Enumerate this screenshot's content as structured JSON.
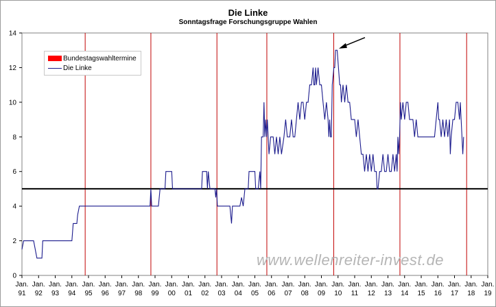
{
  "chart_data": {
    "type": "line",
    "title": "Die Linke",
    "subtitle": "Sonntagsfrage Forschungsgruppe Wahlen",
    "ylim": [
      0,
      14
    ],
    "y_ticks": [
      "0",
      "2",
      "4",
      "6",
      "8",
      "10",
      "12",
      "14"
    ],
    "x_range": [
      1991.0,
      2019.0
    ],
    "x_tick_labels": [
      {
        "month": "Jan.",
        "year": "91"
      },
      {
        "month": "Jan.",
        "year": "92"
      },
      {
        "month": "Jan.",
        "year": "93"
      },
      {
        "month": "Jan.",
        "year": "94"
      },
      {
        "month": "Jan.",
        "year": "95"
      },
      {
        "month": "Jan.",
        "year": "96"
      },
      {
        "month": "Jan.",
        "year": "97"
      },
      {
        "month": "Jan.",
        "year": "98"
      },
      {
        "month": "Jan.",
        "year": "99"
      },
      {
        "month": "Jan.",
        "year": "00"
      },
      {
        "month": "Jan.",
        "year": "01"
      },
      {
        "month": "Jan.",
        "year": "02"
      },
      {
        "month": "Jan.",
        "year": "03"
      },
      {
        "month": "Jan.",
        "year": "04"
      },
      {
        "month": "Jan.",
        "year": "05"
      },
      {
        "month": "Jan.",
        "year": "06"
      },
      {
        "month": "Jan.",
        "year": "07"
      },
      {
        "month": "Jan.",
        "year": "08"
      },
      {
        "month": "Jan.",
        "year": "09"
      },
      {
        "month": "Jan.",
        "year": "10"
      },
      {
        "month": "Jan.",
        "year": "11"
      },
      {
        "month": "Jan.",
        "year": "12"
      },
      {
        "month": "Jan.",
        "year": "13"
      },
      {
        "month": "Jan.",
        "year": "14"
      },
      {
        "month": "Jan.",
        "year": "15"
      },
      {
        "month": "Jan.",
        "year": "16"
      },
      {
        "month": "Jan.",
        "year": "17"
      },
      {
        "month": "Jan.",
        "year": "18"
      },
      {
        "month": "Jan.",
        "year": "19"
      }
    ],
    "legend": [
      {
        "label": "Bundestagswahltermine",
        "color": "#ff0000"
      },
      {
        "label": "Die Linke",
        "color": "#1a1a8c"
      }
    ],
    "legend_position": "top-left",
    "grid": false,
    "election_dates": [
      1994.8,
      1998.75,
      2002.72,
      2005.72,
      2009.74,
      2013.72,
      2017.73
    ],
    "threshold": {
      "value": 5,
      "color": "#000000"
    },
    "annotation_arrow": {
      "x": 2010.05,
      "y": 13.1
    },
    "series": [
      {
        "name": "Die Linke",
        "color": "#1a1a8c",
        "points": [
          [
            1991.0,
            1.5
          ],
          [
            1991.1,
            2
          ],
          [
            1991.5,
            2
          ],
          [
            1991.7,
            2
          ],
          [
            1991.9,
            1
          ],
          [
            1992.0,
            1
          ],
          [
            1992.2,
            1
          ],
          [
            1992.25,
            2
          ],
          [
            1992.5,
            2
          ],
          [
            1993.0,
            2
          ],
          [
            1993.5,
            2
          ],
          [
            1994.0,
            2
          ],
          [
            1994.08,
            3
          ],
          [
            1994.3,
            3
          ],
          [
            1994.35,
            3.5
          ],
          [
            1994.45,
            4
          ],
          [
            1995.0,
            4
          ],
          [
            1996.0,
            4
          ],
          [
            1997.0,
            4
          ],
          [
            1998.0,
            4
          ],
          [
            1998.7,
            4
          ],
          [
            1998.75,
            5
          ],
          [
            1998.8,
            4
          ],
          [
            1999.2,
            4
          ],
          [
            1999.3,
            5
          ],
          [
            1999.6,
            5
          ],
          [
            1999.65,
            6
          ],
          [
            2000.0,
            6
          ],
          [
            2000.05,
            5
          ],
          [
            2001.0,
            5
          ],
          [
            2001.8,
            5
          ],
          [
            2001.85,
            6
          ],
          [
            2002.1,
            6
          ],
          [
            2002.15,
            5
          ],
          [
            2002.2,
            6
          ],
          [
            2002.3,
            5
          ],
          [
            2002.6,
            5
          ],
          [
            2002.65,
            4.5
          ],
          [
            2002.7,
            5
          ],
          [
            2002.75,
            4
          ],
          [
            2003.5,
            4
          ],
          [
            2003.55,
            3.5
          ],
          [
            2003.6,
            3
          ],
          [
            2003.65,
            4
          ],
          [
            2004.1,
            4
          ],
          [
            2004.2,
            4.5
          ],
          [
            2004.3,
            4
          ],
          [
            2004.4,
            5
          ],
          [
            2004.6,
            5
          ],
          [
            2004.65,
            6
          ],
          [
            2004.9,
            6
          ],
          [
            2005.0,
            6
          ],
          [
            2005.05,
            5
          ],
          [
            2005.2,
            5
          ],
          [
            2005.3,
            6
          ],
          [
            2005.35,
            5
          ],
          [
            2005.4,
            8
          ],
          [
            2005.5,
            8
          ],
          [
            2005.55,
            10
          ],
          [
            2005.6,
            8
          ],
          [
            2005.65,
            9
          ],
          [
            2005.7,
            8
          ],
          [
            2005.75,
            9
          ],
          [
            2005.85,
            7
          ],
          [
            2005.95,
            8
          ],
          [
            2006.1,
            8
          ],
          [
            2006.2,
            7
          ],
          [
            2006.3,
            8
          ],
          [
            2006.4,
            7
          ],
          [
            2006.5,
            8
          ],
          [
            2006.6,
            7
          ],
          [
            2006.75,
            8
          ],
          [
            2006.85,
            9
          ],
          [
            2006.95,
            8
          ],
          [
            2007.1,
            8
          ],
          [
            2007.2,
            9
          ],
          [
            2007.3,
            8
          ],
          [
            2007.4,
            8
          ],
          [
            2007.5,
            9
          ],
          [
            2007.6,
            10
          ],
          [
            2007.7,
            9
          ],
          [
            2007.8,
            10
          ],
          [
            2007.9,
            10
          ],
          [
            2008.0,
            9
          ],
          [
            2008.1,
            10
          ],
          [
            2008.2,
            10
          ],
          [
            2008.3,
            11
          ],
          [
            2008.4,
            11
          ],
          [
            2008.5,
            12
          ],
          [
            2008.55,
            11
          ],
          [
            2008.6,
            11
          ],
          [
            2008.65,
            12
          ],
          [
            2008.7,
            11
          ],
          [
            2008.8,
            12
          ],
          [
            2008.9,
            11
          ],
          [
            2009.0,
            11
          ],
          [
            2009.1,
            10
          ],
          [
            2009.2,
            9
          ],
          [
            2009.3,
            10
          ],
          [
            2009.4,
            9
          ],
          [
            2009.45,
            8
          ],
          [
            2009.5,
            9
          ],
          [
            2009.55,
            8
          ],
          [
            2009.6,
            8
          ],
          [
            2009.65,
            11
          ],
          [
            2009.75,
            12
          ],
          [
            2009.8,
            12
          ],
          [
            2009.85,
            13
          ],
          [
            2009.95,
            13
          ],
          [
            2010.1,
            11
          ],
          [
            2010.15,
            11
          ],
          [
            2010.2,
            10
          ],
          [
            2010.3,
            11
          ],
          [
            2010.4,
            10
          ],
          [
            2010.5,
            11
          ],
          [
            2010.6,
            10
          ],
          [
            2010.7,
            10
          ],
          [
            2010.8,
            9
          ],
          [
            2011.0,
            9
          ],
          [
            2011.1,
            8
          ],
          [
            2011.2,
            9
          ],
          [
            2011.3,
            8
          ],
          [
            2011.4,
            7
          ],
          [
            2011.5,
            7
          ],
          [
            2011.6,
            6
          ],
          [
            2011.7,
            7
          ],
          [
            2011.8,
            6
          ],
          [
            2011.9,
            7
          ],
          [
            2012.0,
            6
          ],
          [
            2012.1,
            7
          ],
          [
            2012.2,
            6
          ],
          [
            2012.3,
            6
          ],
          [
            2012.35,
            5
          ],
          [
            2012.4,
            5
          ],
          [
            2012.5,
            6
          ],
          [
            2012.6,
            6
          ],
          [
            2012.7,
            7
          ],
          [
            2012.8,
            6
          ],
          [
            2012.9,
            6
          ],
          [
            2013.0,
            7
          ],
          [
            2013.1,
            6
          ],
          [
            2013.2,
            6
          ],
          [
            2013.3,
            7
          ],
          [
            2013.4,
            6
          ],
          [
            2013.5,
            7
          ],
          [
            2013.55,
            6
          ],
          [
            2013.6,
            8
          ],
          [
            2013.65,
            7
          ],
          [
            2013.7,
            8
          ],
          [
            2013.75,
            10
          ],
          [
            2013.8,
            9
          ],
          [
            2013.9,
            10
          ],
          [
            2014.0,
            9
          ],
          [
            2014.1,
            10
          ],
          [
            2014.2,
            10
          ],
          [
            2014.3,
            9
          ],
          [
            2014.4,
            9
          ],
          [
            2014.5,
            9
          ],
          [
            2014.6,
            8
          ],
          [
            2014.7,
            9
          ],
          [
            2014.8,
            8
          ],
          [
            2015.0,
            8
          ],
          [
            2015.5,
            8
          ],
          [
            2015.8,
            8
          ],
          [
            2015.9,
            9
          ],
          [
            2016.0,
            10
          ],
          [
            2016.05,
            9
          ],
          [
            2016.1,
            9
          ],
          [
            2016.2,
            8
          ],
          [
            2016.3,
            9
          ],
          [
            2016.4,
            8
          ],
          [
            2016.5,
            9
          ],
          [
            2016.6,
            8
          ],
          [
            2016.7,
            9
          ],
          [
            2016.75,
            7
          ],
          [
            2016.8,
            8
          ],
          [
            2016.9,
            9
          ],
          [
            2017.0,
            9
          ],
          [
            2017.1,
            10
          ],
          [
            2017.2,
            10
          ],
          [
            2017.3,
            9
          ],
          [
            2017.35,
            10
          ],
          [
            2017.4,
            9
          ],
          [
            2017.45,
            8
          ],
          [
            2017.5,
            7
          ],
          [
            2017.55,
            8
          ]
        ]
      }
    ]
  },
  "watermark": "www.wellenreiter-invest.de"
}
